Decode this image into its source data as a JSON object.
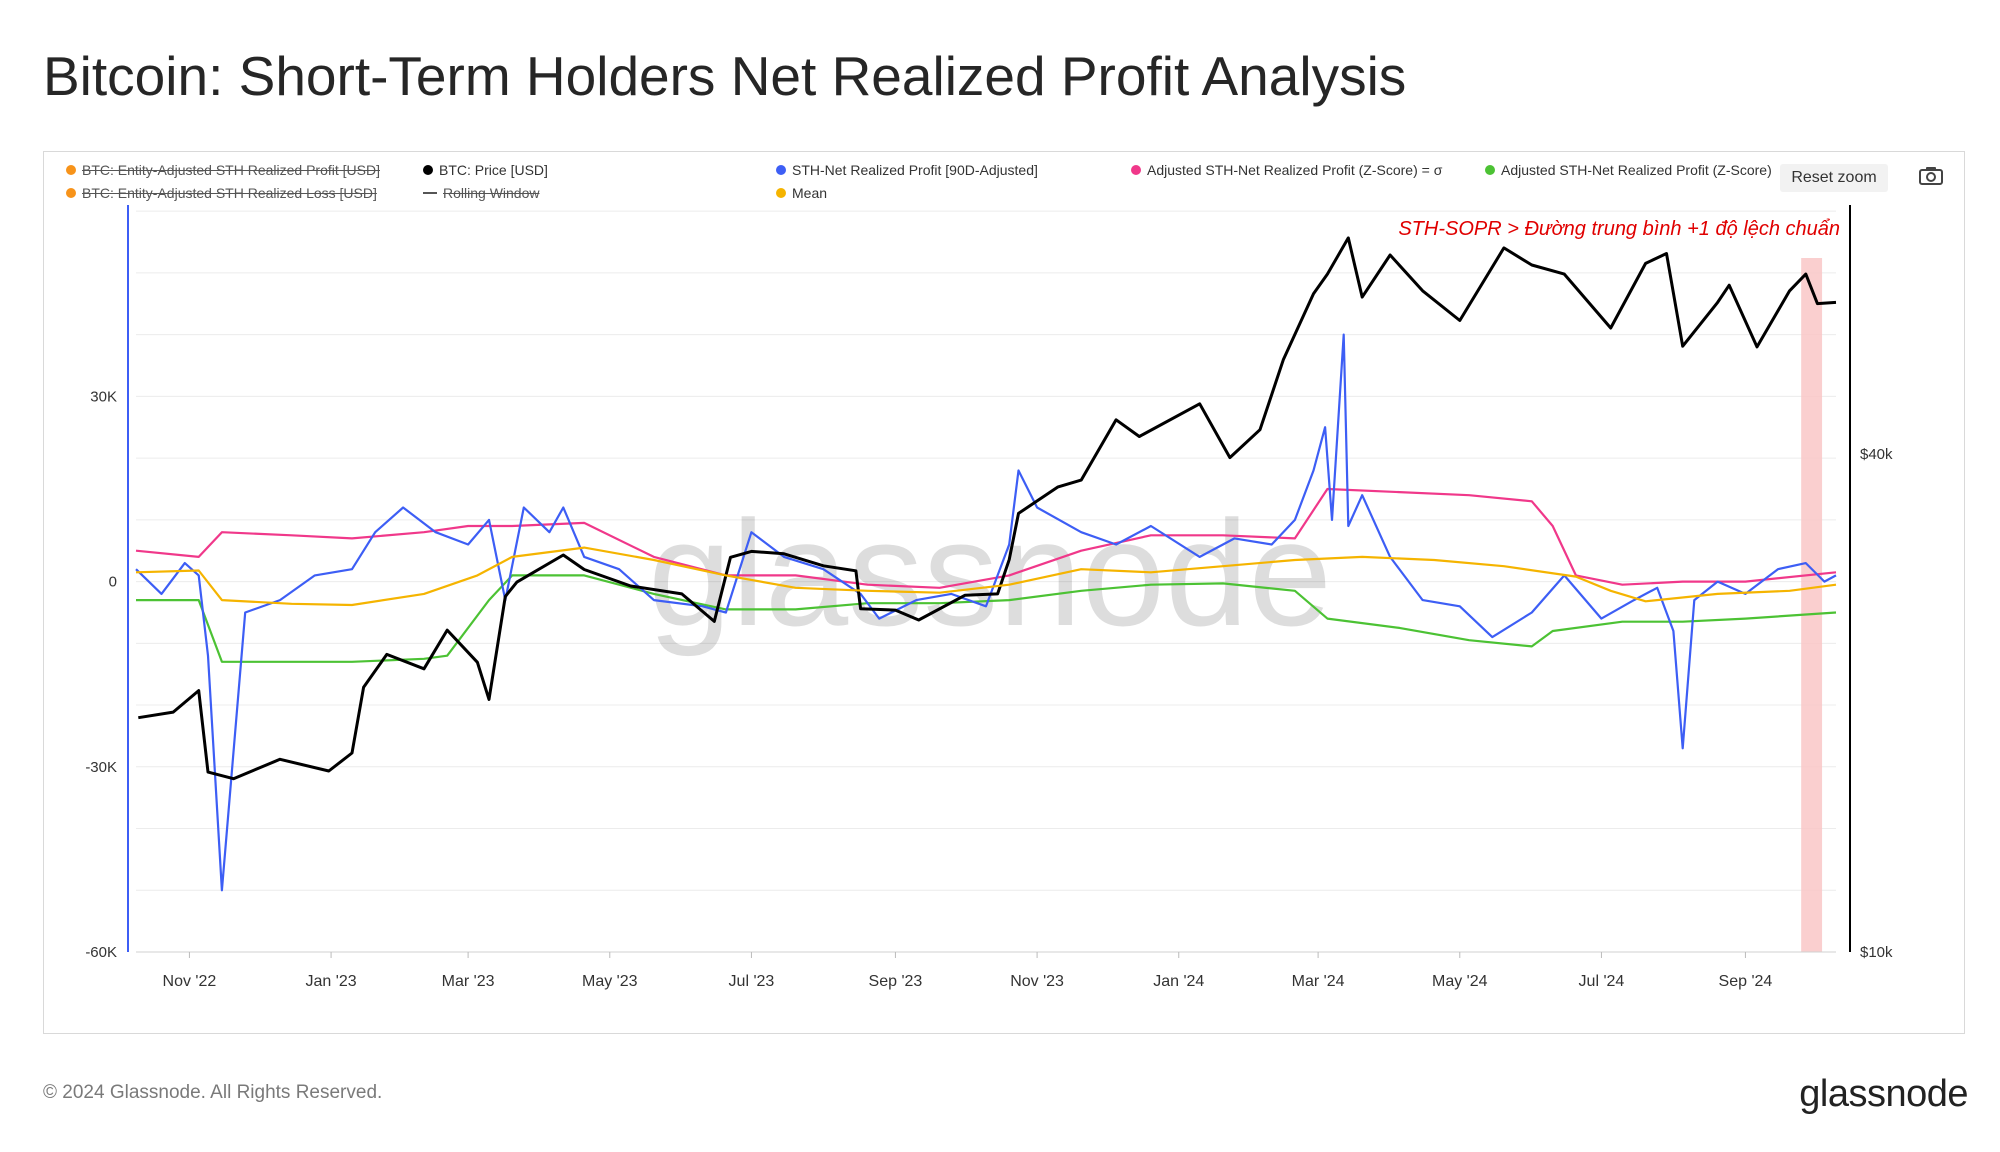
{
  "page": {
    "title": "Bitcoin: Short-Term Holders Net Realized Profit Analysis",
    "copyright": "© 2024 Glassnode. All Rights Reserved.",
    "brand": "glassnode"
  },
  "toolbar": {
    "reset_zoom": "Reset zoom",
    "camera_icon": "camera-icon"
  },
  "legend": [
    {
      "label": "BTC: Entity-Adjusted STH Realized Profit [USD]",
      "color": "#f7931a",
      "visible": false
    },
    {
      "label": "BTC: Entity-Adjusted STH Realized Loss [USD]",
      "color": "#f7931a",
      "visible": false
    },
    {
      "label": "BTC: Price [USD]",
      "color": "#000000",
      "visible": true
    },
    {
      "label": "Rolling Window",
      "color": "#555555",
      "visible": false
    },
    {
      "label": "STH-Net Realized Profit [90D-Adjusted]",
      "color": "#3d5ef5",
      "visible": true
    },
    {
      "label": "Mean",
      "color": "#f5b400",
      "visible": true
    },
    {
      "label": "Adjusted STH-Net Realized Profit (Z-Score) = σ",
      "color": "#f0388a",
      "visible": true
    },
    {
      "label": "Adjusted STH-Net Realized Profit (Z-Score)",
      "color": "#4cc234",
      "visible": true
    }
  ],
  "annotation": "STH-SOPR > Đường trung bình +1 độ lệch chuẩn",
  "watermark": "glassnode",
  "chart_data": {
    "type": "line",
    "x_tick_labels": [
      "Nov '22",
      "Jan '23",
      "Mar '23",
      "May '23",
      "Jul '23",
      "Sep '23",
      "Nov '23",
      "Jan '24",
      "Mar '24",
      "May '24",
      "Jul '24",
      "Sep '24"
    ],
    "x_tick_dates": [
      "2022-11-01",
      "2023-01-01",
      "2023-03-01",
      "2023-05-01",
      "2023-07-01",
      "2023-09-01",
      "2023-11-01",
      "2024-01-01",
      "2024-03-01",
      "2024-05-01",
      "2024-07-01",
      "2024-09-01"
    ],
    "x_range": [
      "2022-10-09",
      "2024-10-10"
    ],
    "y_left": {
      "tick_labels": [
        "30K",
        "0",
        "-30K",
        "-60K"
      ],
      "tick_values": [
        30000,
        0,
        -30000,
        -60000
      ],
      "range": [
        -60000,
        61000
      ]
    },
    "y_right": {
      "scale": "log",
      "tick_labels": [
        "$40k",
        "$10k"
      ],
      "tick_values": [
        40000,
        10000
      ],
      "range": [
        10000,
        80000
      ]
    },
    "grid": true,
    "highlight": {
      "from": "2024-09-25",
      "to": "2024-10-04",
      "color": "#f9c7c7"
    },
    "series": [
      {
        "name": "BTC: Price [USD]",
        "axis": "right",
        "color": "#000000",
        "x": [
          "2022-10-10",
          "2022-10-25",
          "2022-11-05",
          "2022-11-09",
          "2022-11-20",
          "2022-12-10",
          "2022-12-31",
          "2023-01-10",
          "2023-01-15",
          "2023-01-25",
          "2023-02-10",
          "2023-02-20",
          "2023-03-05",
          "2023-03-10",
          "2023-03-17",
          "2023-03-22",
          "2023-04-11",
          "2023-04-20",
          "2023-05-10",
          "2023-06-01",
          "2023-06-15",
          "2023-06-22",
          "2023-07-01",
          "2023-07-15",
          "2023-08-01",
          "2023-08-15",
          "2023-08-17",
          "2023-09-01",
          "2023-09-11",
          "2023-10-01",
          "2023-10-15",
          "2023-10-20",
          "2023-10-24",
          "2023-11-10",
          "2023-11-20",
          "2023-12-05",
          "2023-12-15",
          "2024-01-10",
          "2024-01-23",
          "2024-02-05",
          "2024-02-15",
          "2024-02-28",
          "2024-03-05",
          "2024-03-14",
          "2024-03-20",
          "2024-04-01",
          "2024-04-15",
          "2024-05-01",
          "2024-05-20",
          "2024-06-01",
          "2024-06-15",
          "2024-07-05",
          "2024-07-20",
          "2024-07-29",
          "2024-08-05",
          "2024-08-20",
          "2024-08-25",
          "2024-09-06",
          "2024-09-20",
          "2024-09-27",
          "2024-10-02",
          "2024-10-10"
        ],
        "y": [
          19200,
          19500,
          20700,
          16500,
          16200,
          17100,
          16550,
          17400,
          20900,
          22900,
          22000,
          24500,
          22400,
          20200,
          26900,
          28000,
          30200,
          29000,
          27700,
          27100,
          25100,
          30000,
          30500,
          30300,
          29300,
          28900,
          26000,
          25900,
          25200,
          27000,
          27100,
          29800,
          33900,
          36500,
          37200,
          44000,
          42000,
          46000,
          39600,
          42800,
          52000,
          62500,
          66000,
          73000,
          61900,
          69600,
          63000,
          58000,
          71000,
          67700,
          66000,
          56800,
          68000,
          69900,
          54000,
          61000,
          64000,
          53900,
          63000,
          66000,
          60800,
          61000
        ]
      },
      {
        "name": "STH-Net Realized Profit [90D-Adjusted]",
        "axis": "left",
        "color": "#3d5ef5",
        "x": [
          "2022-10-09",
          "2022-10-20",
          "2022-10-30",
          "2022-11-05",
          "2022-11-09",
          "2022-11-15",
          "2022-11-25",
          "2022-12-10",
          "2022-12-25",
          "2023-01-10",
          "2023-01-20",
          "2023-02-01",
          "2023-02-15",
          "2023-03-01",
          "2023-03-10",
          "2023-03-17",
          "2023-03-25",
          "2023-04-05",
          "2023-04-11",
          "2023-04-20",
          "2023-05-05",
          "2023-05-20",
          "2023-06-10",
          "2023-06-20",
          "2023-07-01",
          "2023-07-15",
          "2023-08-01",
          "2023-08-17",
          "2023-08-25",
          "2023-09-10",
          "2023-09-25",
          "2023-10-10",
          "2023-10-20",
          "2023-10-24",
          "2023-11-01",
          "2023-11-20",
          "2023-12-05",
          "2023-12-20",
          "2024-01-10",
          "2024-01-25",
          "2024-02-10",
          "2024-02-20",
          "2024-02-28",
          "2024-03-04",
          "2024-03-07",
          "2024-03-12",
          "2024-03-14",
          "2024-03-20",
          "2024-04-01",
          "2024-04-15",
          "2024-05-01",
          "2024-05-15",
          "2024-06-01",
          "2024-06-15",
          "2024-07-01",
          "2024-07-15",
          "2024-07-25",
          "2024-08-01",
          "2024-08-05",
          "2024-08-10",
          "2024-08-20",
          "2024-09-01",
          "2024-09-15",
          "2024-09-27",
          "2024-10-05",
          "2024-10-10"
        ],
        "y": [
          2000,
          -2000,
          3000,
          1000,
          -12000,
          -50000,
          -5000,
          -3000,
          1000,
          2000,
          8000,
          12000,
          8000,
          6000,
          10000,
          -3000,
          12000,
          8000,
          12000,
          4000,
          2000,
          -3000,
          -4000,
          -5000,
          8000,
          4000,
          2000,
          -2000,
          -6000,
          -3000,
          -2000,
          -4000,
          6000,
          18000,
          12000,
          8000,
          6000,
          9000,
          4000,
          7000,
          6000,
          10000,
          18000,
          25000,
          10000,
          40000,
          9000,
          14000,
          4000,
          -3000,
          -4000,
          -9000,
          -5000,
          1000,
          -6000,
          -3000,
          -1000,
          -8000,
          -27000,
          -3000,
          0,
          -2000,
          2000,
          3000,
          0,
          1000
        ]
      },
      {
        "name": "Mean",
        "axis": "left",
        "color": "#f5b400",
        "x": [
          "2022-10-09",
          "2022-11-05",
          "2022-11-15",
          "2022-12-15",
          "2023-01-10",
          "2023-02-10",
          "2023-03-05",
          "2023-03-20",
          "2023-04-20",
          "2023-05-20",
          "2023-06-20",
          "2023-07-20",
          "2023-08-20",
          "2023-09-20",
          "2023-10-20",
          "2023-11-20",
          "2023-12-20",
          "2024-01-20",
          "2024-02-20",
          "2024-03-20",
          "2024-04-20",
          "2024-05-20",
          "2024-06-20",
          "2024-07-05",
          "2024-07-20",
          "2024-08-20",
          "2024-09-20",
          "2024-10-10"
        ],
        "y": [
          1500,
          1800,
          -3000,
          -3600,
          -3800,
          -2000,
          1000,
          4000,
          5500,
          3500,
          1000,
          -1000,
          -1500,
          -1800,
          -500,
          2000,
          1500,
          2500,
          3500,
          4000,
          3500,
          2500,
          800,
          -1500,
          -3200,
          -2000,
          -1500,
          -500
        ]
      },
      {
        "name": "Adjusted STH-Net Realized Profit (Z-Score) = σ",
        "axis": "left",
        "color": "#f0388a",
        "x": [
          "2022-10-09",
          "2022-11-05",
          "2022-11-15",
          "2022-12-15",
          "2023-01-10",
          "2023-02-10",
          "2023-03-01",
          "2023-03-20",
          "2023-04-20",
          "2023-05-20",
          "2023-06-20",
          "2023-07-20",
          "2023-08-20",
          "2023-09-20",
          "2023-10-20",
          "2023-11-20",
          "2023-12-20",
          "2024-01-20",
          "2024-02-20",
          "2024-03-05",
          "2024-04-05",
          "2024-05-05",
          "2024-06-01",
          "2024-06-10",
          "2024-06-20",
          "2024-07-10",
          "2024-08-05",
          "2024-09-01",
          "2024-10-10"
        ],
        "y": [
          5000,
          4000,
          8000,
          7500,
          7000,
          8000,
          9000,
          9000,
          9500,
          4000,
          1000,
          1000,
          -500,
          -1000,
          1000,
          5000,
          7500,
          7500,
          7000,
          15000,
          14500,
          14000,
          13000,
          9000,
          1000,
          -500,
          0,
          0,
          1500
        ]
      },
      {
        "name": "Adjusted STH-Net Realized Profit (Z-Score)",
        "axis": "left",
        "color": "#4cc234",
        "x": [
          "2022-10-09",
          "2022-11-05",
          "2022-11-15",
          "2022-12-15",
          "2023-01-10",
          "2023-02-10",
          "2023-02-20",
          "2023-03-10",
          "2023-03-20",
          "2023-04-20",
          "2023-05-20",
          "2023-06-20",
          "2023-07-20",
          "2023-08-20",
          "2023-09-20",
          "2023-10-20",
          "2023-11-20",
          "2023-12-20",
          "2024-01-20",
          "2024-02-20",
          "2024-03-05",
          "2024-04-05",
          "2024-05-05",
          "2024-06-01",
          "2024-06-10",
          "2024-07-10",
          "2024-08-05",
          "2024-09-01",
          "2024-10-10"
        ],
        "y": [
          -3000,
          -3000,
          -13000,
          -13000,
          -13000,
          -12500,
          -12000,
          -3000,
          1000,
          1000,
          -2000,
          -4500,
          -4500,
          -3500,
          -3500,
          -3000,
          -1500,
          -500,
          -300,
          -1500,
          -6000,
          -7500,
          -9500,
          -10500,
          -8000,
          -6500,
          -6500,
          -6000,
          -5000
        ]
      }
    ]
  }
}
